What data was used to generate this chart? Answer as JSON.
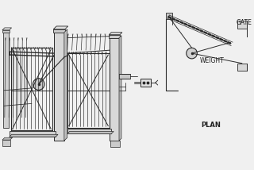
{
  "bg_color": "#f0f0f0",
  "line_color": "#2a2a2a",
  "text_color": "#222222",
  "gate_label": "GATE",
  "weight_label": "WEIGHT",
  "plan_label": "PLAN",
  "fig_width": 3.2,
  "fig_height": 2.14,
  "dpi": 100
}
